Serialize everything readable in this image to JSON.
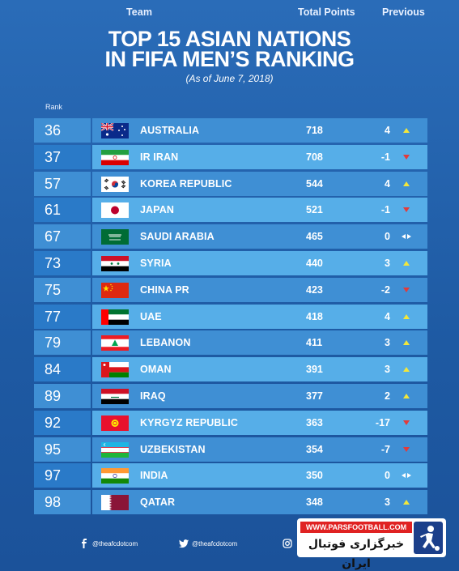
{
  "header": {
    "title_line1": "TOP 15 ASIAN NATIONS",
    "title_line2": "IN FIFA MEN’S  RANKING",
    "subtitle": "(As of June 7, 2018)"
  },
  "columns": {
    "rank": "Rank",
    "team": "Team",
    "points": "Total Points",
    "previous": "Previous"
  },
  "colors": {
    "up": "#f2e63a",
    "down": "#e23b3b",
    "same": "#ffffff"
  },
  "rows": [
    {
      "rank": "36",
      "team": "AUSTRALIA",
      "points": "718",
      "previous": "4",
      "trend": "up",
      "flag": "australia-flag"
    },
    {
      "rank": "37",
      "team": "IR IRAN",
      "points": "708",
      "previous": "-1",
      "trend": "down",
      "flag": "iran-flag"
    },
    {
      "rank": "57",
      "team": "KOREA REPUBLIC",
      "points": "544",
      "previous": "4",
      "trend": "up",
      "flag": "korea-flag"
    },
    {
      "rank": "61",
      "team": "JAPAN",
      "points": "521",
      "previous": "-1",
      "trend": "down",
      "flag": "japan-flag"
    },
    {
      "rank": "67",
      "team": "SAUDI ARABIA",
      "points": "465",
      "previous": "0",
      "trend": "same",
      "flag": "saudi-arabia-flag"
    },
    {
      "rank": "73",
      "team": "SYRIA",
      "points": "440",
      "previous": "3",
      "trend": "up",
      "flag": "syria-flag"
    },
    {
      "rank": "75",
      "team": "CHINA PR",
      "points": "423",
      "previous": "-2",
      "trend": "down",
      "flag": "china-flag"
    },
    {
      "rank": "77",
      "team": "UAE",
      "points": "418",
      "previous": "4",
      "trend": "up",
      "flag": "uae-flag"
    },
    {
      "rank": "79",
      "team": "LEBANON",
      "points": "411",
      "previous": "3",
      "trend": "up",
      "flag": "lebanon-flag"
    },
    {
      "rank": "84",
      "team": "OMAN",
      "points": "391",
      "previous": "3",
      "trend": "up",
      "flag": "oman-flag"
    },
    {
      "rank": "89",
      "team": "IRAQ",
      "points": "377",
      "previous": "2",
      "trend": "up",
      "flag": "iraq-flag"
    },
    {
      "rank": "92",
      "team": "KYRGYZ REPUBLIC",
      "points": "363",
      "previous": "-17",
      "trend": "down",
      "flag": "kyrgyzstan-flag"
    },
    {
      "rank": "95",
      "team": "UZBEKISTAN",
      "points": "354",
      "previous": "-7",
      "trend": "down",
      "flag": "uzbekistan-flag"
    },
    {
      "rank": "97",
      "team": "INDIA",
      "points": "350",
      "previous": "0",
      "trend": "same",
      "flag": "india-flag"
    },
    {
      "rank": "98",
      "team": "QATAR",
      "points": "348",
      "previous": "3",
      "trend": "up",
      "flag": "qatar-flag"
    }
  ],
  "footer": {
    "facebook": "@theafcdotcom",
    "twitter": "@theafcdotcom",
    "instagram_icon": "instagram-icon"
  },
  "watermark": {
    "site": "WWW.PARSFOOTBALL.COM",
    "persian": "خبرگزاری فوتبال ایران"
  }
}
